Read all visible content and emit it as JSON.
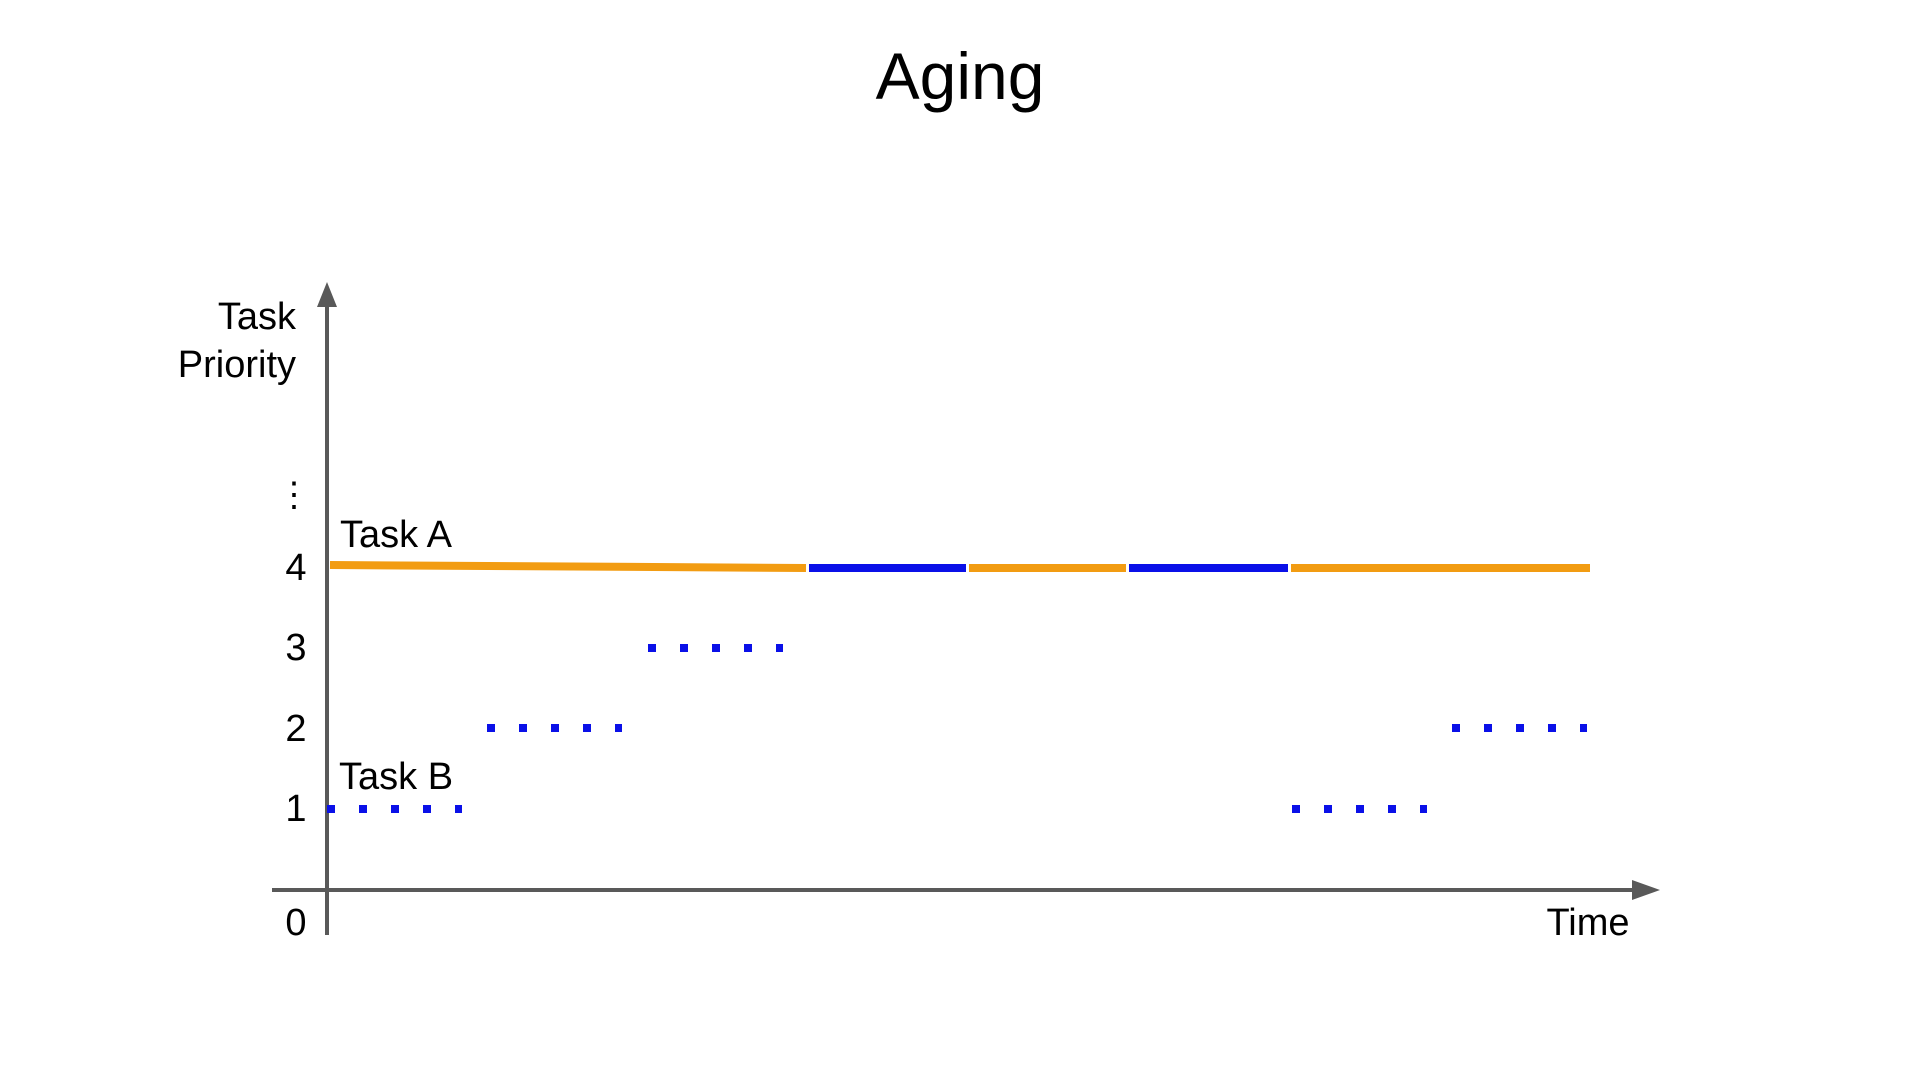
{
  "title": "Aging",
  "y_axis": {
    "label_line1": "Task",
    "label_line2": "Priority",
    "ticks": [
      "0",
      "1",
      "2",
      "3",
      "4"
    ],
    "ellipsis": "⋮"
  },
  "x_axis": {
    "label": "Time"
  },
  "tasks": {
    "a_label": "Task A",
    "b_label": "Task B"
  },
  "colors": {
    "task_a_line": "#F29C12",
    "task_b_dots": "#0A10E8",
    "task_b_running": "#0A10E8",
    "axis": "#595959"
  }
}
